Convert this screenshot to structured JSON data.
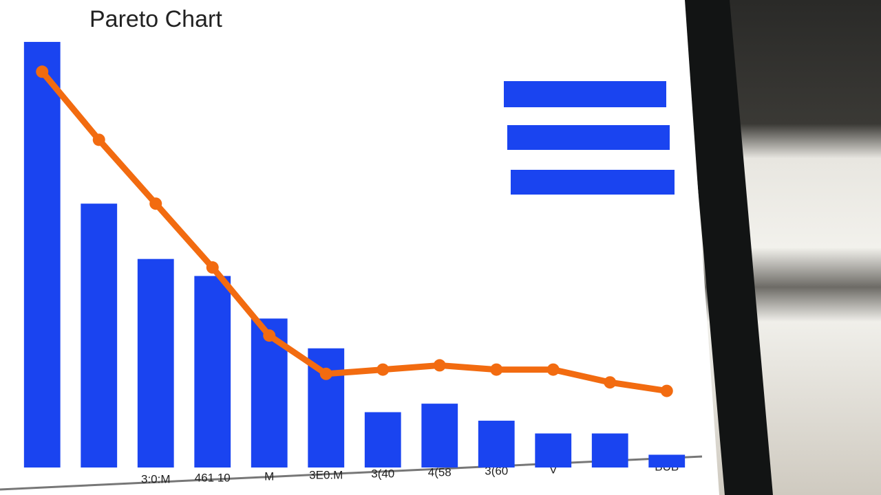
{
  "chart_data": {
    "type": "bar",
    "title": "Pareto Chart",
    "categories": [
      null,
      null,
      "3:0:M",
      "461 10",
      "M",
      "3E0.M",
      "3(40",
      "4(58",
      "3(60",
      "V",
      null,
      "BUB"
    ],
    "series": [
      {
        "type": "bar",
        "color": "#1a44f0",
        "values": [
          100,
          62,
          49,
          45,
          35,
          28,
          13,
          15,
          11,
          8,
          8,
          3
        ]
      },
      {
        "type": "line",
        "color": "#f26b10",
        "values": [
          93,
          77,
          62,
          47,
          31,
          22,
          23,
          24,
          23,
          23,
          20,
          18
        ]
      }
    ],
    "ylim": [
      0,
      105
    ]
  }
}
